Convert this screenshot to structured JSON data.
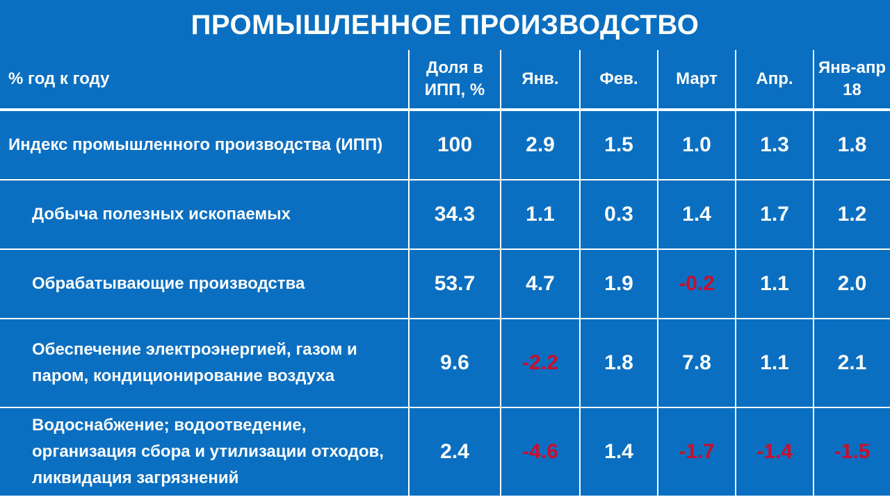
{
  "title": "ПРОМЫШЛЕННОЕ ПРОИЗВОДСТВО",
  "header": {
    "label": "% год к году",
    "share": "Доля в ИПП, %",
    "jan": "Янв.",
    "feb": "Фев.",
    "mar": "Март",
    "apr": "Апр.",
    "janapr": "Янв-апр 18"
  },
  "rows": [
    {
      "label": "Индекс промышленного производства (ИПП)",
      "share": "100",
      "jan": "2.9",
      "feb": "1.5",
      "mar": "1.0",
      "apr": "1.3",
      "janapr": "1.8"
    },
    {
      "label": "Добыча полезных ископаемых",
      "share": "34.3",
      "jan": "1.1",
      "feb": "0.3",
      "mar": "1.4",
      "apr": "1.7",
      "janapr": "1.2"
    },
    {
      "label": "Обрабатывающие производства",
      "share": "53.7",
      "jan": "4.7",
      "feb": "1.9",
      "mar": "-0.2",
      "apr": "1.1",
      "janapr": "2.0"
    },
    {
      "label": "Обеспечение электроэнергией, газом и паром, кондиционирование воздуха",
      "share": "9.6",
      "jan": "-2.2",
      "feb": "1.8",
      "mar": "7.8",
      "apr": "1.1",
      "janapr": "2.1"
    },
    {
      "label": "Водоснабжение; водоотведение, организация сбора и утилизации отходов, ликвидация загрязнений",
      "share": "2.4",
      "jan": "-4.6",
      "feb": "1.4",
      "mar": "-1.7",
      "apr": "-1.4",
      "janapr": "-1.5"
    }
  ],
  "colors": {
    "background": "#0a6ec1",
    "text": "#ffffff",
    "negative": "#c8102e",
    "grid": "#ffffff"
  }
}
